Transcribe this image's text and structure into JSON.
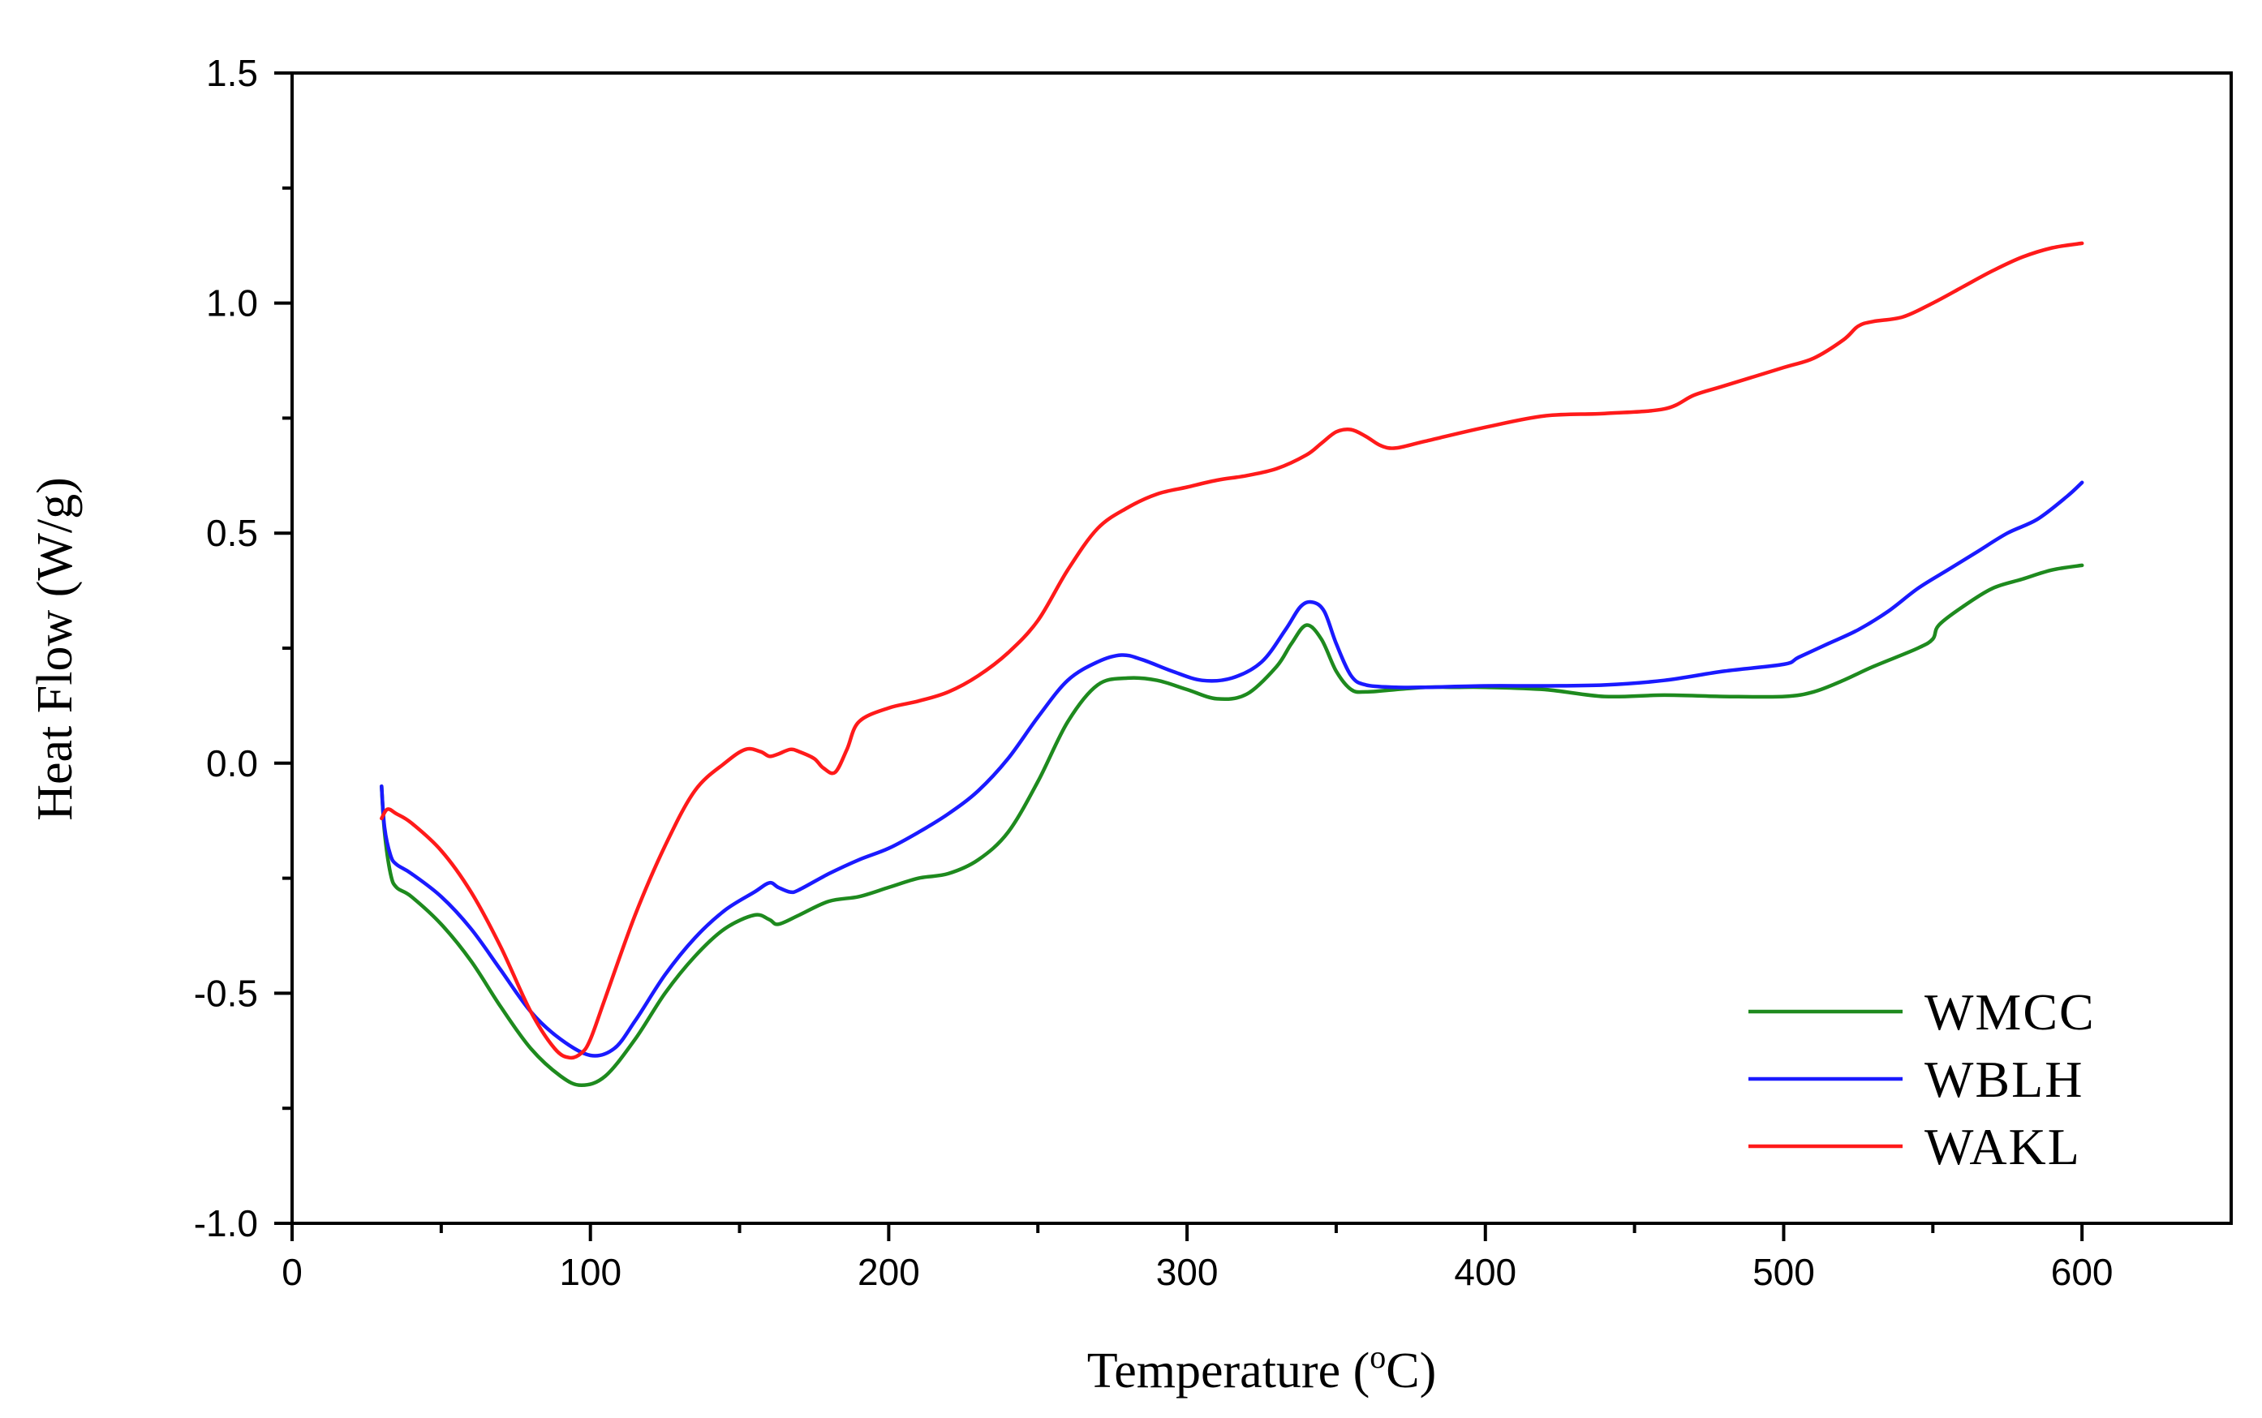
{
  "chart_data": {
    "type": "line",
    "title": "",
    "xlabel_main": "Temperature (",
    "xlabel_sup": "o",
    "xlabel_end": "C)",
    "ylabel": "Heat Flow (W/g)",
    "xlim": [
      0,
      650
    ],
    "ylim": [
      -1.0,
      1.5
    ],
    "xticks": [
      "0",
      "100",
      "200",
      "300",
      "400",
      "500",
      "600"
    ],
    "yticks": [
      "-1.0",
      "-0.5",
      "0.0",
      "0.5",
      "1.0",
      "1.5"
    ],
    "grid": false,
    "legend_position": "bottom-right",
    "series": [
      {
        "name": "WMCC",
        "color": "#1e8a1e",
        "x": [
          30,
          31,
          33,
          35,
          40,
          50,
          60,
          70,
          80,
          90,
          97,
          105,
          115,
          125,
          135,
          145,
          155,
          160,
          163,
          170,
          180,
          190,
          200,
          210,
          220,
          230,
          240,
          250,
          260,
          270,
          280,
          290,
          300,
          310,
          320,
          330,
          335,
          340,
          345,
          350,
          355,
          360,
          370,
          380,
          390,
          400,
          420,
          440,
          460,
          480,
          500,
          510,
          520,
          530,
          545,
          550,
          552,
          560,
          570,
          580,
          590,
          600
        ],
        "y": [
          -0.05,
          -0.15,
          -0.24,
          -0.27,
          -0.29,
          -0.35,
          -0.43,
          -0.53,
          -0.62,
          -0.68,
          -0.7,
          -0.68,
          -0.6,
          -0.5,
          -0.42,
          -0.36,
          -0.33,
          -0.34,
          -0.35,
          -0.33,
          -0.3,
          -0.29,
          -0.27,
          -0.25,
          -0.24,
          -0.21,
          -0.15,
          -0.04,
          0.09,
          0.17,
          0.185,
          0.18,
          0.16,
          0.14,
          0.15,
          0.21,
          0.26,
          0.3,
          0.27,
          0.2,
          0.16,
          0.155,
          0.16,
          0.165,
          0.165,
          0.165,
          0.16,
          0.145,
          0.148,
          0.145,
          0.145,
          0.155,
          0.18,
          0.21,
          0.25,
          0.27,
          0.3,
          0.34,
          0.38,
          0.4,
          0.42,
          0.43
        ]
      },
      {
        "name": "WBLH",
        "color": "#1a1aff",
        "x": [
          30,
          31,
          33,
          35,
          40,
          50,
          60,
          70,
          80,
          90,
          100,
          108,
          115,
          125,
          135,
          145,
          155,
          160,
          163,
          167,
          170,
          180,
          190,
          200,
          210,
          220,
          230,
          240,
          250,
          260,
          270,
          278,
          285,
          295,
          305,
          315,
          325,
          333,
          338,
          342,
          346,
          350,
          355,
          360,
          370,
          380,
          400,
          420,
          440,
          460,
          480,
          500,
          505,
          515,
          525,
          535,
          545,
          555,
          565,
          575,
          585,
          595,
          600
        ],
        "y": [
          -0.05,
          -0.14,
          -0.2,
          -0.22,
          -0.24,
          -0.29,
          -0.36,
          -0.45,
          -0.54,
          -0.6,
          -0.635,
          -0.62,
          -0.56,
          -0.46,
          -0.38,
          -0.32,
          -0.28,
          -0.26,
          -0.27,
          -0.28,
          -0.275,
          -0.24,
          -0.21,
          -0.185,
          -0.15,
          -0.11,
          -0.06,
          0.01,
          0.1,
          0.18,
          0.22,
          0.235,
          0.225,
          0.2,
          0.18,
          0.185,
          0.22,
          0.29,
          0.34,
          0.35,
          0.33,
          0.26,
          0.19,
          0.17,
          0.165,
          0.165,
          0.168,
          0.168,
          0.17,
          0.18,
          0.2,
          0.215,
          0.23,
          0.26,
          0.29,
          0.33,
          0.38,
          0.42,
          0.46,
          0.5,
          0.53,
          0.58,
          0.61
        ]
      },
      {
        "name": "WAKL",
        "color": "#ff1a1a",
        "x": [
          30,
          32,
          35,
          40,
          50,
          60,
          70,
          80,
          88,
          93,
          97,
          100,
          105,
          115,
          125,
          135,
          145,
          152,
          157,
          160,
          163,
          167,
          170,
          175,
          178,
          182,
          186,
          190,
          200,
          210,
          220,
          230,
          240,
          250,
          260,
          270,
          280,
          290,
          300,
          310,
          320,
          330,
          340,
          345,
          350,
          355,
          360,
          365,
          370,
          380,
          400,
          420,
          440,
          460,
          470,
          480,
          500,
          510,
          520,
          525,
          530,
          540,
          550,
          560,
          570,
          580,
          590,
          600
        ],
        "y": [
          -0.12,
          -0.1,
          -0.11,
          -0.13,
          -0.19,
          -0.28,
          -0.4,
          -0.54,
          -0.62,
          -0.64,
          -0.63,
          -0.6,
          -0.51,
          -0.33,
          -0.18,
          -0.06,
          0.0,
          0.03,
          0.025,
          0.015,
          0.02,
          0.03,
          0.025,
          0.01,
          -0.01,
          -0.02,
          0.03,
          0.09,
          0.12,
          0.135,
          0.155,
          0.19,
          0.24,
          0.31,
          0.42,
          0.51,
          0.555,
          0.585,
          0.6,
          0.615,
          0.625,
          0.64,
          0.67,
          0.695,
          0.72,
          0.725,
          0.71,
          0.69,
          0.685,
          0.7,
          0.73,
          0.755,
          0.76,
          0.77,
          0.8,
          0.82,
          0.86,
          0.88,
          0.92,
          0.95,
          0.96,
          0.97,
          1.0,
          1.035,
          1.07,
          1.1,
          1.12,
          1.13
        ]
      }
    ]
  }
}
